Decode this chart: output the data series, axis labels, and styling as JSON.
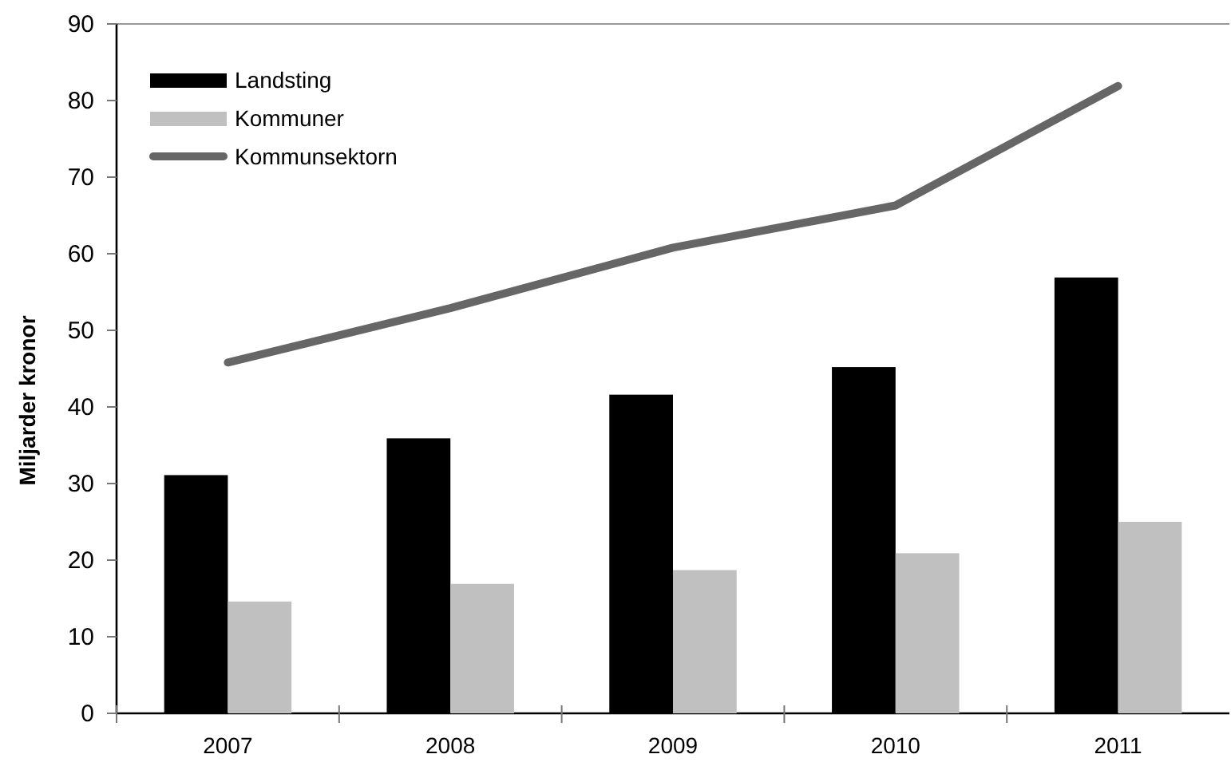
{
  "chart_data": {
    "type": "bar",
    "ylabel": "Miljarder kronor",
    "categories": [
      "2007",
      "2008",
      "2009",
      "2010",
      "2011"
    ],
    "series": [
      {
        "name": "Landsting",
        "color": "#000000",
        "values": [
          31.1,
          35.9,
          41.6,
          45.2,
          56.9
        ]
      },
      {
        "name": "Kommuner",
        "color": "#c0c0c0",
        "values": [
          14.6,
          16.9,
          18.7,
          20.9,
          25.0
        ]
      },
      {
        "name": "Kommunsektorn",
        "type": "line",
        "color": "#666666",
        "values": [
          45.8,
          52.9,
          60.8,
          66.3,
          81.9
        ]
      }
    ],
    "ylim": [
      0,
      90
    ],
    "yticks": [
      0,
      10,
      20,
      30,
      40,
      50,
      60,
      70,
      80,
      90
    ],
    "legend": "top left"
  }
}
